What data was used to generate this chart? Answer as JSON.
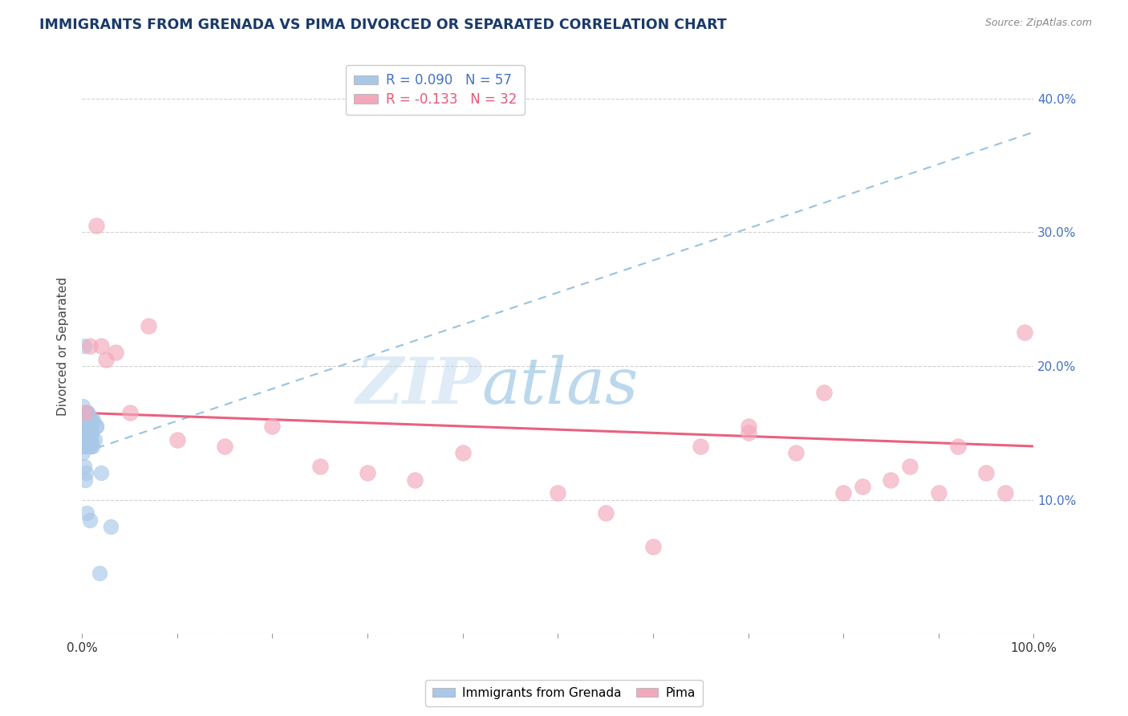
{
  "title": "IMMIGRANTS FROM GRENADA VS PIMA DIVORCED OR SEPARATED CORRELATION CHART",
  "source": "Source: ZipAtlas.com",
  "ylabel": "Divorced or Separated",
  "legend_label1": "Immigrants from Grenada",
  "legend_label2": "Pima",
  "R1": 0.09,
  "N1": 57,
  "R2": -0.133,
  "N2": 32,
  "blue_color": "#A8C8E8",
  "pink_color": "#F4A8BC",
  "blue_line_color": "#88B8D8",
  "pink_line_color": "#E85878",
  "blue_dots_x": [
    0.1,
    0.2,
    0.3,
    0.4,
    0.5,
    0.6,
    0.7,
    0.8,
    0.9,
    1.0,
    0.1,
    0.2,
    0.3,
    0.4,
    0.5,
    0.6,
    0.7,
    0.8,
    0.9,
    1.0,
    0.1,
    0.2,
    0.3,
    0.5,
    0.6,
    0.8,
    1.0,
    1.2,
    1.3,
    1.5,
    0.1,
    0.2,
    0.3,
    0.4,
    0.5,
    0.6,
    0.7,
    0.8,
    1.0,
    1.1,
    0.2,
    0.3,
    0.4,
    0.5,
    0.6,
    0.7,
    0.9,
    1.5,
    2.0,
    3.0,
    0.1,
    0.2,
    0.3,
    0.4,
    0.5,
    0.8,
    1.8
  ],
  "blue_dots_y": [
    15.5,
    16.0,
    15.0,
    15.5,
    16.5,
    15.0,
    14.5,
    15.5,
    16.0,
    15.0,
    17.0,
    15.5,
    16.0,
    14.5,
    15.0,
    16.5,
    14.0,
    15.5,
    16.0,
    14.5,
    16.5,
    15.5,
    16.0,
    14.0,
    15.5,
    14.5,
    15.0,
    16.0,
    14.5,
    15.5,
    14.0,
    15.5,
    16.0,
    14.0,
    15.0,
    16.5,
    14.5,
    15.0,
    16.0,
    14.0,
    21.5,
    15.5,
    15.0,
    16.0,
    14.5,
    15.5,
    14.0,
    15.5,
    12.0,
    8.0,
    13.5,
    12.5,
    11.5,
    12.0,
    9.0,
    8.5,
    4.5
  ],
  "pink_dots_x": [
    0.3,
    0.8,
    1.5,
    2.0,
    2.5,
    3.5,
    5.0,
    7.0,
    10.0,
    15.0,
    20.0,
    25.0,
    30.0,
    35.0,
    40.0,
    50.0,
    55.0,
    60.0,
    65.0,
    70.0,
    70.0,
    75.0,
    78.0,
    80.0,
    82.0,
    85.0,
    87.0,
    90.0,
    92.0,
    95.0,
    97.0,
    99.0
  ],
  "pink_dots_y": [
    16.5,
    21.5,
    30.5,
    21.5,
    20.5,
    21.0,
    16.5,
    23.0,
    14.5,
    14.0,
    15.5,
    12.5,
    12.0,
    11.5,
    13.5,
    10.5,
    9.0,
    6.5,
    14.0,
    15.5,
    15.0,
    13.5,
    18.0,
    10.5,
    11.0,
    11.5,
    12.5,
    10.5,
    14.0,
    12.0,
    10.5,
    22.5
  ],
  "blue_line_x0": 0.0,
  "blue_line_y0": 13.5,
  "blue_line_x1": 100.0,
  "blue_line_y1": 37.5,
  "pink_line_x0": 0.0,
  "pink_line_y0": 16.5,
  "pink_line_x1": 100.0,
  "pink_line_y1": 14.0,
  "xmin": 0.0,
  "xmax": 100.0,
  "ymin": 0.0,
  "ymax": 43.0,
  "yticks": [
    0,
    10,
    20,
    30,
    40
  ],
  "watermark_zip": "ZIP",
  "watermark_atlas": "atlas",
  "background_color": "#FFFFFF",
  "grid_color": "#CCCCCC",
  "title_color": "#1A3A6A",
  "right_axis_color": "#4472C4",
  "legend_text_color1": "#4472C4",
  "legend_text_color2": "#E85878"
}
